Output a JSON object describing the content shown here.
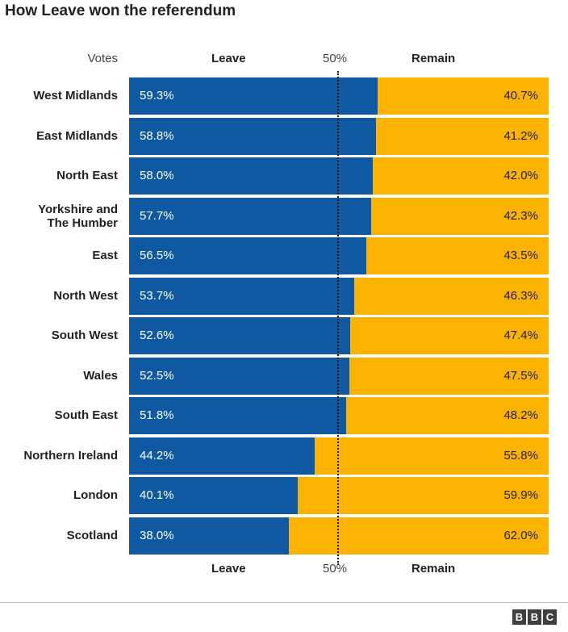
{
  "title": "How Leave won the referendum",
  "header": {
    "votes": "Votes",
    "leave": "Leave",
    "midpoint": "50%",
    "remain": "Remain"
  },
  "logo": [
    "B",
    "B",
    "C"
  ],
  "colors": {
    "leave": "#0f59a3",
    "remain": "#fbb300"
  },
  "chart_data": {
    "type": "bar",
    "orientation": "horizontal-stacked",
    "title": "How Leave won the referendum",
    "xlim": [
      0,
      100
    ],
    "categories": [
      "West Midlands",
      "East Midlands",
      "North East",
      "Yorkshire and The Humber",
      "East",
      "North West",
      "South West",
      "Wales",
      "South East",
      "Northern Ireland",
      "London",
      "Scotland"
    ],
    "series": [
      {
        "name": "Leave",
        "values": [
          59.3,
          58.8,
          58.0,
          57.7,
          56.5,
          53.7,
          52.6,
          52.5,
          51.8,
          44.2,
          40.1,
          38.0
        ]
      },
      {
        "name": "Remain",
        "values": [
          40.7,
          41.2,
          42.0,
          42.3,
          43.5,
          46.3,
          47.4,
          47.5,
          48.2,
          55.8,
          59.9,
          62.0
        ]
      }
    ],
    "leave_labels": [
      "59.3%",
      "58.8%",
      "58.0%",
      "57.7%",
      "56.5%",
      "53.7%",
      "52.6%",
      "52.5%",
      "51.8%",
      "44.2%",
      "40.1%",
      "38.0%"
    ],
    "remain_labels": [
      "40.7%",
      "41.2%",
      "42.0%",
      "42.3%",
      "43.5%",
      "46.3%",
      "47.4%",
      "47.5%",
      "48.2%",
      "55.8%",
      "59.9%",
      "62.0%"
    ],
    "reference_line": {
      "value": 50,
      "label": "50%"
    }
  }
}
